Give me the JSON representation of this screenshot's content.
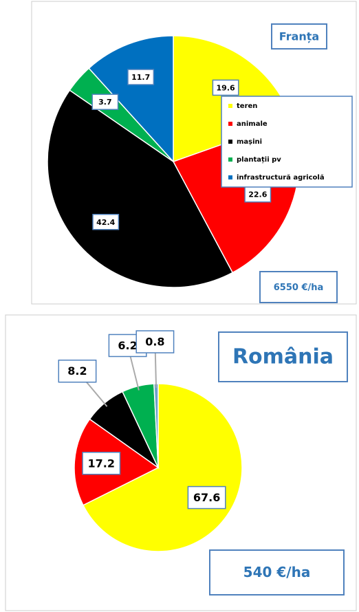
{
  "chart_data": [
    {
      "type": "pie",
      "title": "Franța",
      "annotation": "6550 €/ha",
      "categories": [
        "teren",
        "animale",
        "mașini",
        "plantații pv",
        "infrastructură agricolă"
      ],
      "values": [
        19.6,
        22.6,
        42.4,
        3.7,
        11.7
      ],
      "colors": [
        "#ffff00",
        "#ff0000",
        "#000000",
        "#00b050",
        "#0070c0"
      ],
      "legend": "right"
    },
    {
      "type": "pie",
      "title": "România",
      "annotation": "540 €/ha",
      "values": [
        67.6,
        17.2,
        8.2,
        6.2,
        0.8
      ],
      "colors": [
        "#ffff00",
        "#ff0000",
        "#000000",
        "#00b050",
        "#6fa0c8"
      ]
    }
  ]
}
